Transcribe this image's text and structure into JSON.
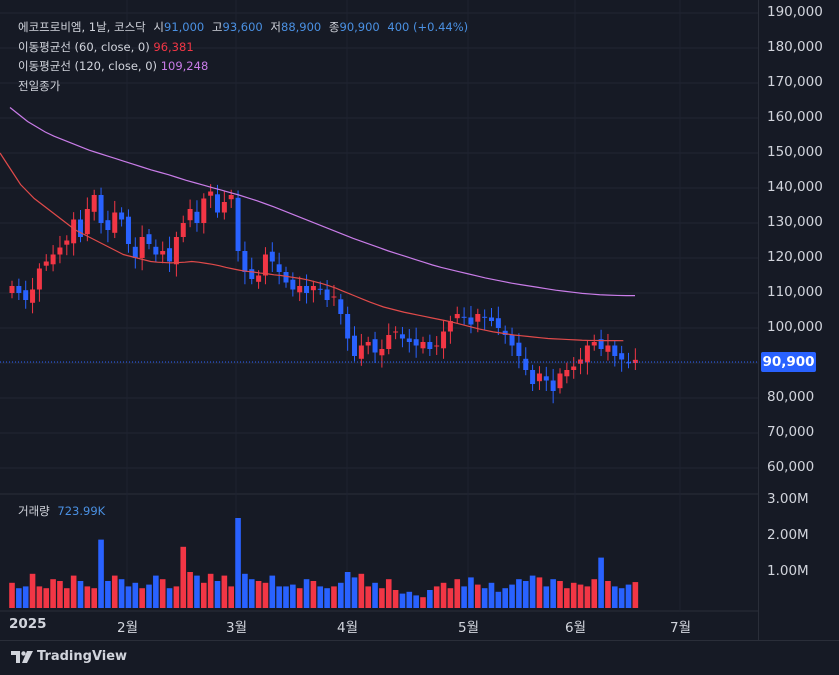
{
  "legend": {
    "symbol": "에코프로비엠, 1날, 코스닥",
    "open_label": "시",
    "open": "91,000",
    "high_label": "고",
    "high": "93,600",
    "low_label": "저",
    "low": "88,900",
    "close_label": "종",
    "close": "90,900",
    "change": "400 (+0.44%)",
    "ma60_label": "이동평균선 (60, close, 0)",
    "ma60_value": "96,381",
    "ma120_label": "이동평균선 (120, close, 0)",
    "ma120_value": "109,248",
    "prev_close": "전일종가"
  },
  "volume_legend": {
    "label": "거래량",
    "value": "723.99K"
  },
  "price_tag": "90,900",
  "brand": "TradingView",
  "colors": {
    "up": "#f23645",
    "down": "#2962ff",
    "ma60": "#e04a4a",
    "ma120": "#c97ce8",
    "background": "#161a25"
  },
  "chart_data": {
    "type": "candlestick",
    "price_axis": {
      "ticks": [
        "190,000",
        "180,000",
        "170,000",
        "160,000",
        "150,000",
        "140,000",
        "130,000",
        "120,000",
        "110,000",
        "100,000",
        "90,000",
        "80,000",
        "70,000",
        "60,000"
      ],
      "ylim": [
        55000,
        192000
      ]
    },
    "volume_axis": {
      "ticks": [
        "3.00M",
        "2.00M",
        "1.00M"
      ],
      "ylim": [
        0,
        3000000
      ]
    },
    "x_ticks": [
      "2025",
      "2월",
      "3월",
      "4월",
      "5월",
      "6월",
      "7월"
    ],
    "series": [
      {
        "name": "이동평균선 (60, close, 0)",
        "color": "#e04a4a"
      },
      {
        "name": "이동평균선 (120, close, 0)",
        "color": "#c97ce8"
      }
    ],
    "close": [
      112000,
      110000,
      108000,
      111000,
      117000,
      119000,
      121000,
      123000,
      125000,
      131000,
      126000,
      134000,
      138000,
      130000,
      128000,
      133000,
      131000,
      124000,
      120000,
      126000,
      124000,
      121000,
      122000,
      119000,
      126000,
      130000,
      134000,
      130000,
      137000,
      139000,
      133000,
      136000,
      138000,
      122000,
      116000,
      114000,
      115000,
      121000,
      119000,
      116000,
      113000,
      111000,
      112000,
      110000,
      112000,
      111000,
      108000,
      109000,
      104000,
      97000,
      92000,
      95000,
      96000,
      93000,
      94000,
      98000,
      99000,
      97000,
      96000,
      95000,
      96000,
      94000,
      95000,
      99000,
      102000,
      104000,
      103000,
      101000,
      104000,
      103000,
      102000,
      100000,
      98000,
      95000,
      92000,
      88000,
      84000,
      87000,
      85000,
      82000,
      87000,
      88000,
      89000,
      91000,
      95000,
      96000,
      94000,
      95000,
      92000,
      91000,
      90000,
      90900
    ],
    "ma60": [
      150000,
      147000,
      144000,
      141000,
      139000,
      137000,
      135500,
      134000,
      132500,
      131000,
      129500,
      128000,
      127000,
      126000,
      125000,
      124000,
      123000,
      122000,
      121000,
      120500,
      120000,
      119500,
      119000,
      118800,
      118700,
      118600,
      118700,
      118800,
      119000,
      118800,
      118500,
      118200,
      117800,
      117300,
      116900,
      116500,
      116200,
      116000,
      115700,
      115500,
      115200,
      115000,
      114700,
      114400,
      114100,
      113700,
      113200,
      112700,
      112100,
      111400,
      110600,
      109800,
      109000,
      108200,
      107400,
      106700,
      106000,
      105500,
      105000,
      104500,
      104100,
      103700,
      103300,
      102900,
      102500,
      102100,
      101700,
      101200,
      100700,
      100200,
      99700,
      99300,
      98900,
      98600,
      98300,
      98000,
      97800,
      97600,
      97400,
      97200,
      97000,
      96900,
      96800,
      96700,
      96600,
      96500,
      96450,
      96420,
      96400,
      96390,
      96385,
      96381
    ],
    "ma120": [
      163000,
      161000,
      159000,
      157500,
      156000,
      154800,
      153800,
      152800,
      151800,
      150800,
      150000,
      149200,
      148400,
      147600,
      146800,
      146000,
      145200,
      144500,
      143800,
      143000,
      142200,
      141500,
      140800,
      140100,
      139400,
      138700,
      138000,
      137200,
      136400,
      135500,
      134600,
      133600,
      132600,
      131600,
      130600,
      129600,
      128600,
      127600,
      126600,
      125600,
      124700,
      123800,
      122900,
      122000,
      121200,
      120400,
      119600,
      118800,
      118000,
      117300,
      116700,
      116100,
      115500,
      114900,
      114300,
      113800,
      113300,
      112800,
      112400,
      112000,
      111600,
      111200,
      110800,
      110500,
      110200,
      109900,
      109700,
      109500,
      109400,
      109300,
      109250,
      109248
    ],
    "volume": [
      0.7,
      0.55,
      0.6,
      0.95,
      0.6,
      0.55,
      0.8,
      0.75,
      0.55,
      0.9,
      0.75,
      0.6,
      0.55,
      1.9,
      0.75,
      0.9,
      0.8,
      0.6,
      0.7,
      0.55,
      0.65,
      0.9,
      0.8,
      0.55,
      0.6,
      1.7,
      1.0,
      0.9,
      0.7,
      0.95,
      0.75,
      0.9,
      0.6,
      2.5,
      0.95,
      0.8,
      0.75,
      0.7,
      0.9,
      0.6,
      0.6,
      0.65,
      0.55,
      0.8,
      0.75,
      0.6,
      0.55,
      0.6,
      0.7,
      1.0,
      0.85,
      0.95,
      0.6,
      0.7,
      0.55,
      0.8,
      0.5,
      0.4,
      0.45,
      0.35,
      0.3,
      0.5,
      0.6,
      0.7,
      0.55,
      0.8,
      0.6,
      0.85,
      0.65,
      0.55,
      0.7,
      0.45,
      0.55,
      0.65,
      0.8,
      0.75,
      0.9,
      0.85,
      0.6,
      0.8,
      0.75,
      0.55,
      0.7,
      0.65,
      0.6,
      0.8,
      1.4,
      0.75,
      0.6,
      0.55,
      0.65,
      0.72
    ]
  }
}
